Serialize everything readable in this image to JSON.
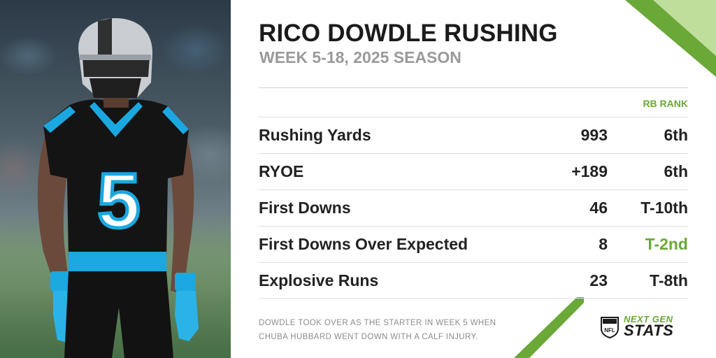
{
  "header": {
    "title": "RICO DOWDLE RUSHING",
    "subtitle": "WEEK 5-18, 2025 SEASON"
  },
  "table": {
    "rank_header": "RB RANK",
    "rows": [
      {
        "label": "Rushing Yards",
        "value": "993",
        "rank": "6th"
      },
      {
        "label": "RYOE",
        "value": "+189",
        "rank": "6th"
      },
      {
        "label": "First Downs",
        "value": "46",
        "rank": "T-10th"
      },
      {
        "label": "First Downs Over Expected",
        "value": "8",
        "rank": "T-2nd"
      },
      {
        "label": "Explosive Runs",
        "value": "23",
        "rank": "T-8th"
      }
    ]
  },
  "footnote": "DOWDLE TOOK OVER AS THE STARTER IN WEEK 5 WHEN CHUBA HUBBARD WENT DOWN WITH A CALF INJURY.",
  "branding": {
    "league_logo": "NFL",
    "line1": "NEXT GEN",
    "line2": "STATS"
  },
  "photo": {
    "jersey_number": "5"
  },
  "colors": {
    "accent_green": "#6aa838",
    "title_dark": "#1b1b1b",
    "subtitle_gray": "#9a9a9a",
    "panthers_blue": "#1ba8e0"
  }
}
